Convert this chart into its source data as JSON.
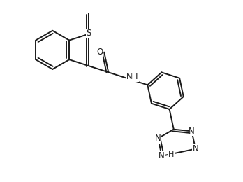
{
  "bg_color": "#ffffff",
  "line_color": "#1a1a1a",
  "line_width": 1.4,
  "font_size": 8.5,
  "fig_width": 3.48,
  "fig_height": 2.6,
  "dpi": 100,
  "xlim": [
    0,
    10
  ],
  "ylim": [
    0,
    7.5
  ]
}
